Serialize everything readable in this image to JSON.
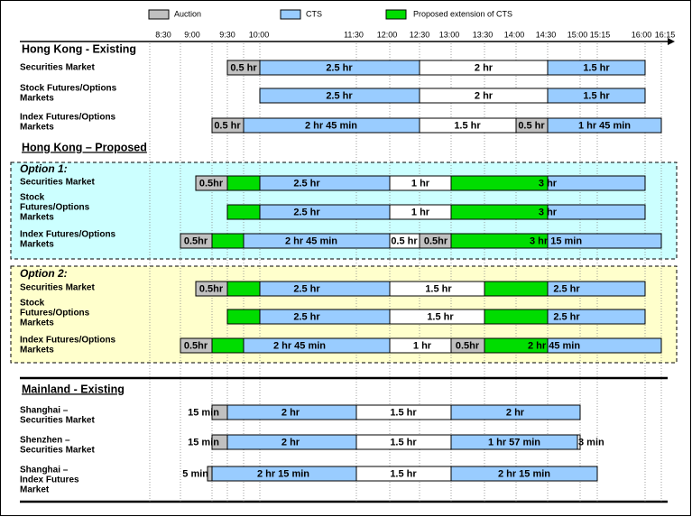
{
  "legend": [
    "Auction",
    "CTS",
    "Proposed extension of CTS"
  ],
  "time_axis": [
    "8:30",
    "9:00",
    "9:30",
    "10:00",
    "11:30",
    "12:00",
    "12:30",
    "13:00",
    "13:30",
    "14:00",
    "14:30",
    "15:00",
    "15:15",
    "16:00",
    "16:15"
  ],
  "hong_kong_existing": {
    "title": "Hong Kong - Existing",
    "rows": [
      {
        "label": [
          "Securities Market"
        ],
        "bars": [
          "0.5 hr",
          "2.5 hr",
          "2 hr",
          "1.5 hr"
        ]
      },
      {
        "label": [
          "Stock Futures/Options",
          "Markets"
        ],
        "bars": [
          "2.5 hr",
          "2 hr",
          "1.5 hr"
        ]
      },
      {
        "label": [
          "Index Futures/Options",
          "Markets"
        ],
        "bars": [
          "0.5 hr",
          "2 hr 45 min",
          "1.5 hr",
          "0.5 hr",
          "1 hr 45 min"
        ]
      }
    ]
  },
  "hong_kong_proposed": {
    "title": "Hong Kong – Proposed",
    "options": [
      {
        "title": "Option 1:",
        "rows": [
          {
            "label": [
              "Securities Market"
            ],
            "bars": [
              "0.5hr",
              "2.5 hr",
              "1 hr",
              "3 hr"
            ]
          },
          {
            "label": [
              "Stock",
              "Futures/Options",
              "Markets"
            ],
            "bars": [
              "2.5 hr",
              "1 hr",
              "3 hr"
            ]
          },
          {
            "label": [
              "Index Futures/Options",
              "Markets"
            ],
            "bars": [
              "0.5hr",
              "2 hr 45 min",
              "0.5 hr",
              "0.5hr",
              "3 hr 15 min"
            ]
          }
        ]
      },
      {
        "title": "Option 2:",
        "rows": [
          {
            "label": [
              "Securities Market"
            ],
            "bars": [
              "0.5hr",
              "2.5 hr",
              "1.5 hr",
              "2.5 hr"
            ]
          },
          {
            "label": [
              "Stock",
              "Futures/Options",
              "Markets"
            ],
            "bars": [
              "2.5 hr",
              "1.5 hr",
              "2.5 hr"
            ]
          },
          {
            "label": [
              "Index Futures/Options",
              "Markets"
            ],
            "bars": [
              "0.5hr",
              "2 hr 45 min",
              "1 hr",
              "0.5hr",
              "2 hr 45 min"
            ]
          }
        ]
      }
    ]
  },
  "mainland_existing": {
    "title": "Mainland - Existing",
    "rows": [
      {
        "label": [
          "Shanghai –",
          "Securities Market"
        ],
        "bars": [
          "15 min",
          "2 hr",
          "1.5 hr",
          "2 hr"
        ]
      },
      {
        "label": [
          "Shenzhen –",
          "Securities Market"
        ],
        "bars": [
          "15 min",
          "2 hr",
          "1.5 hr",
          "1 hr 57 min",
          "3 min"
        ]
      },
      {
        "label": [
          "Shanghai –",
          "Index Futures",
          "Market"
        ],
        "bars": [
          "5 min",
          "2 hr 15 min",
          "1.5 hr",
          "2 hr 15 min"
        ]
      }
    ]
  }
}
